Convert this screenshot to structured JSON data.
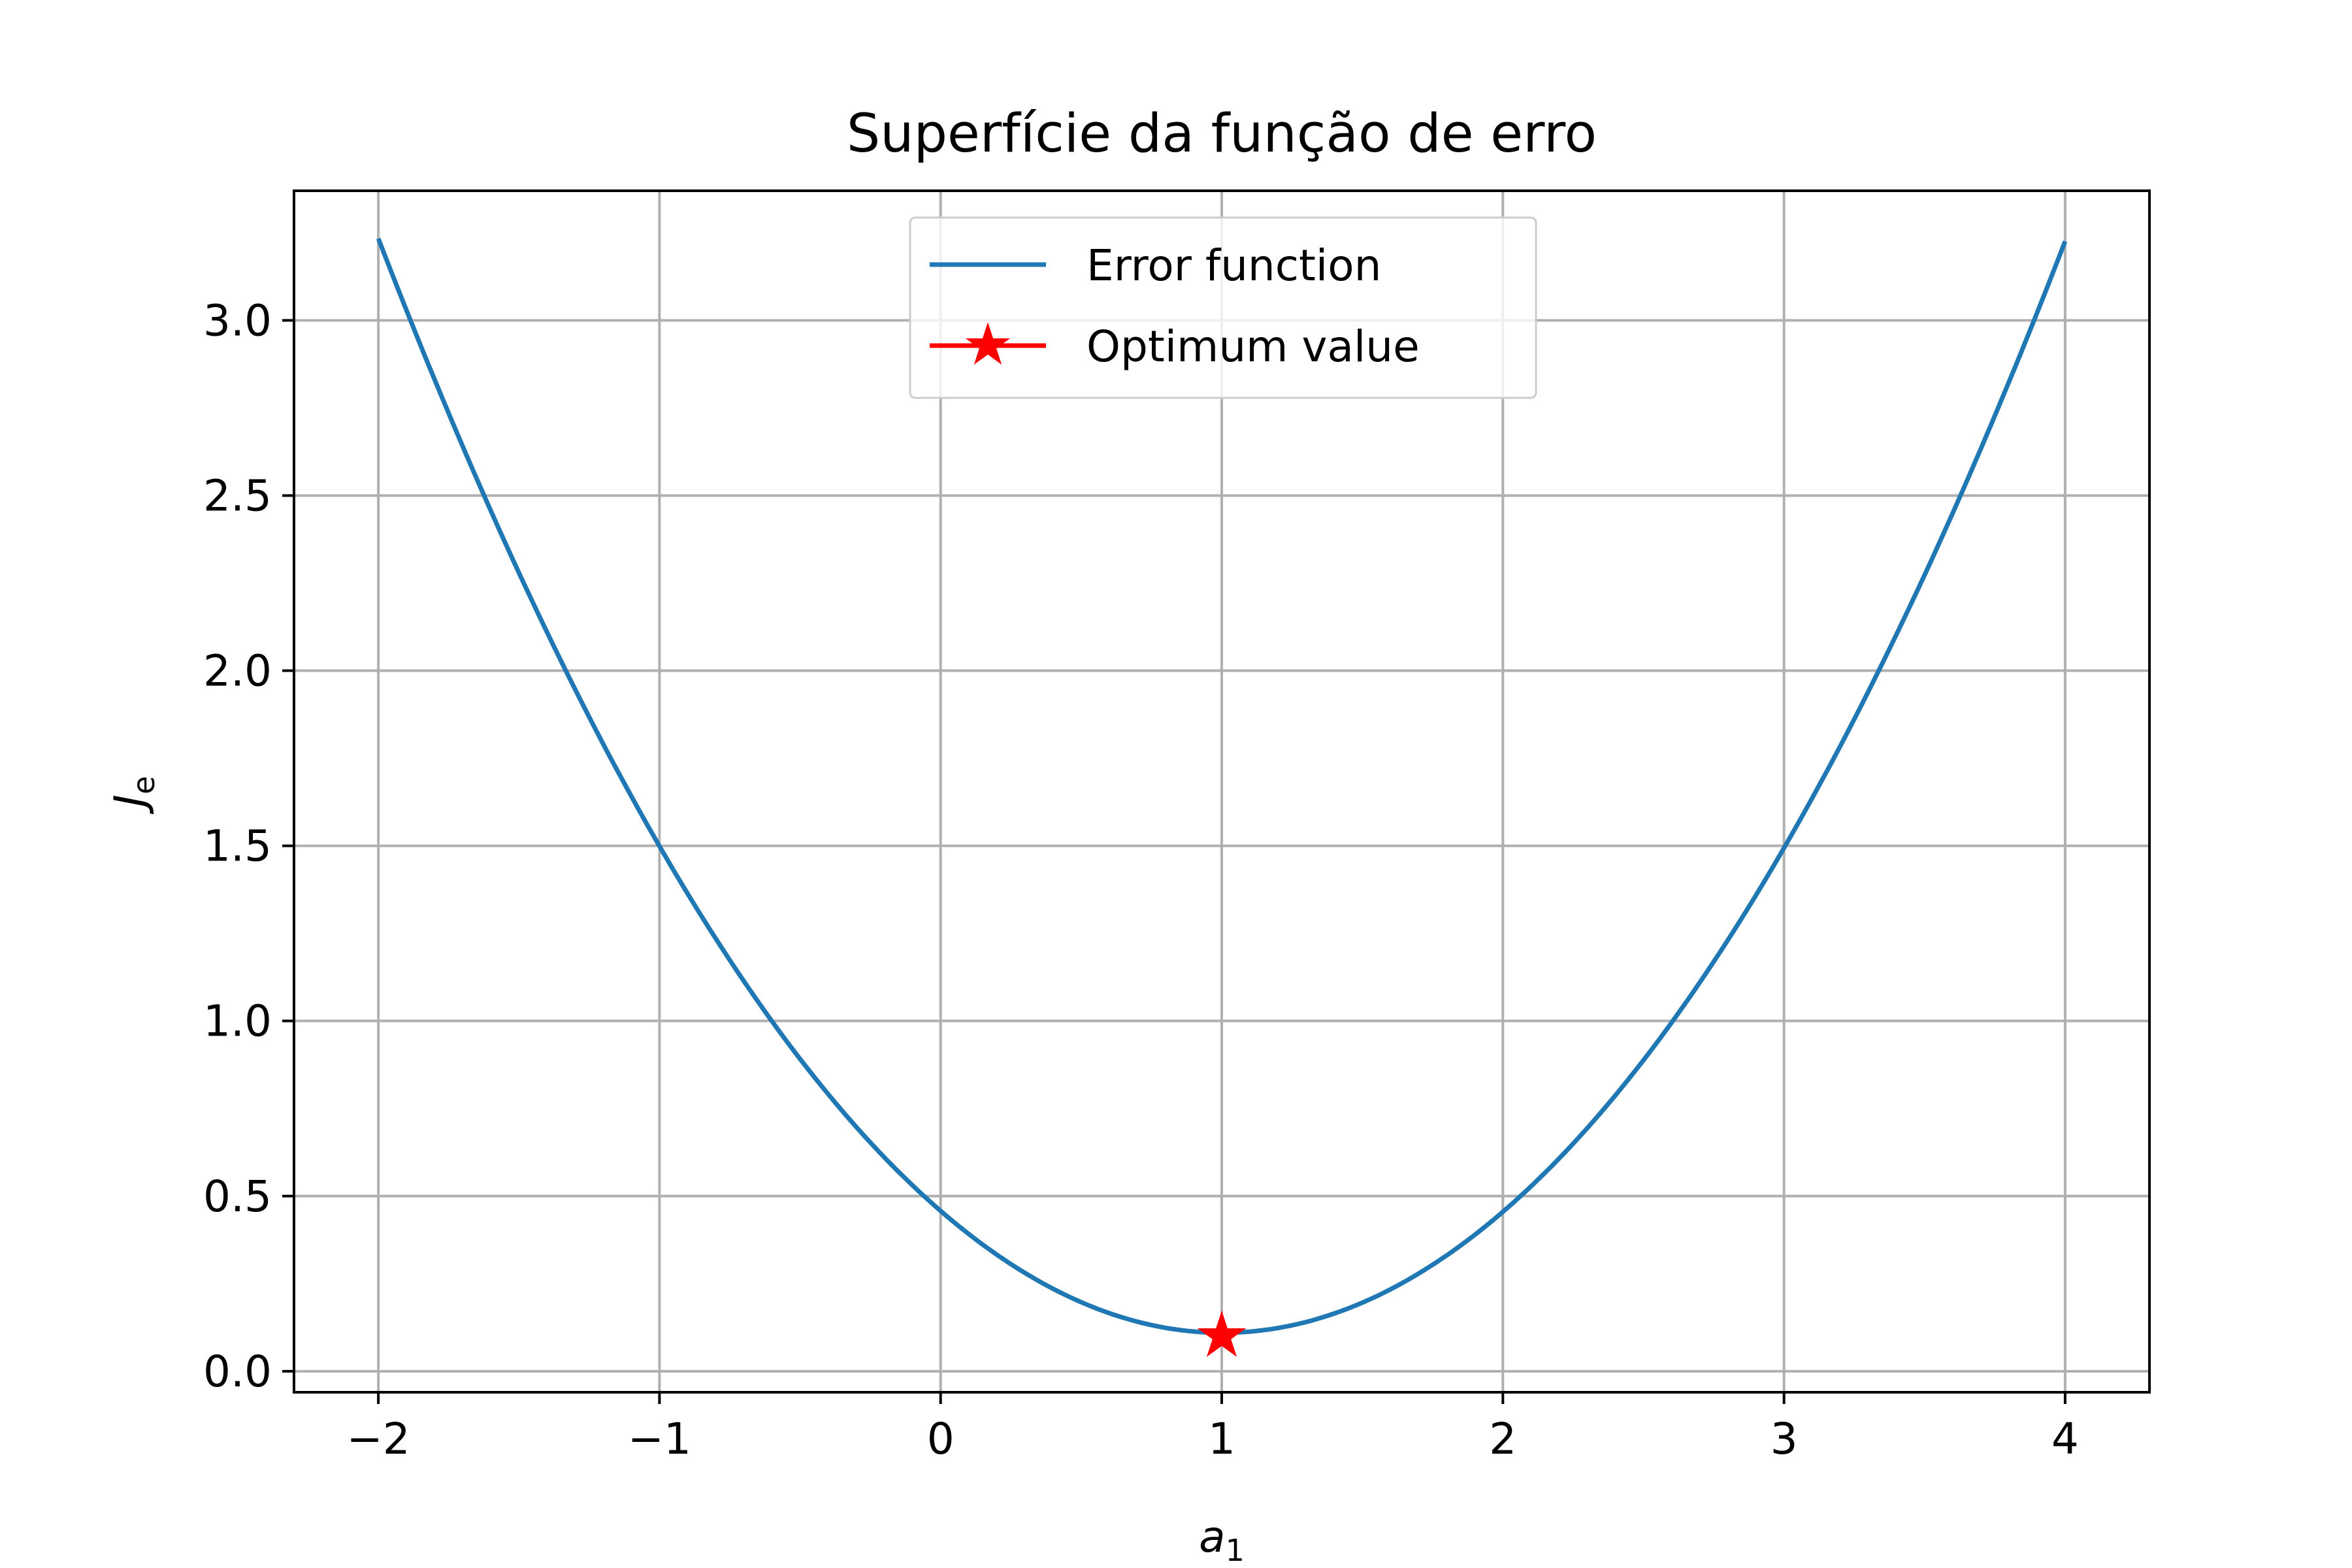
{
  "chart_data": {
    "type": "line",
    "title": "Superfície da função de erro",
    "xlabel": "a",
    "xlabel_subscript": "1",
    "ylabel": "J",
    "ylabel_subscript": "e",
    "xlim": [
      -2.3,
      4.3
    ],
    "ylim": [
      -0.06,
      3.37
    ],
    "xticks": [
      -2,
      -1,
      0,
      1,
      2,
      3,
      4
    ],
    "xtick_labels": [
      "−2",
      "−1",
      "0",
      "1",
      "2",
      "3",
      "4"
    ],
    "yticks": [
      0.0,
      0.5,
      1.0,
      1.5,
      2.0,
      2.5,
      3.0
    ],
    "ytick_labels": [
      "0.0",
      "0.5",
      "1.0",
      "1.5",
      "2.0",
      "2.5",
      "3.0"
    ],
    "grid": true,
    "legend_position": "top-center",
    "series": [
      {
        "name": "Error function",
        "color": "#1f77b4",
        "kind": "line",
        "x": [
          -2.0,
          -1.5,
          -1.0,
          -0.5,
          0.0,
          0.5,
          1.0,
          1.5,
          2.0,
          2.5,
          3.0,
          3.5,
          4.0
        ],
        "y": [
          3.22,
          2.3,
          1.5,
          0.9,
          0.45,
          0.19,
          0.1,
          0.19,
          0.45,
          0.9,
          1.5,
          2.3,
          3.2
        ]
      },
      {
        "name": "Optimum value",
        "color": "#ff0000",
        "kind": "marker",
        "marker": "star",
        "x": [
          1.0
        ],
        "y": [
          0.1
        ]
      }
    ]
  }
}
